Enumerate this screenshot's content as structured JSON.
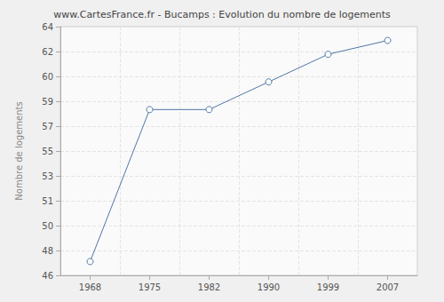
{
  "chart_data": {
    "type": "line",
    "title": "www.CartesFrance.fr - Bucamps : Evolution du nombre de logements",
    "ylabel": "Nombre de logements",
    "categories": [
      "1968",
      "1975",
      "1982",
      "1990",
      "1999",
      "2007"
    ],
    "values": [
      47,
      58,
      58,
      60,
      62,
      63
    ],
    "color": "#4f76a6",
    "marker": "circle",
    "ylim": [
      46,
      64
    ],
    "yticks": [
      46,
      {
        "value": 47.8,
        "label": "48"
      },
      {
        "value": 49.6,
        "label": "50"
      },
      {
        "value": 51.4,
        "label": "51"
      },
      {
        "value": 53.2,
        "label": "53"
      },
      55,
      {
        "value": 56.8,
        "label": "57"
      },
      {
        "value": 58.6,
        "label": "59"
      },
      {
        "value": 60.4,
        "label": "60"
      },
      {
        "value": 62.2,
        "label": "62"
      },
      64
    ],
    "grid": true
  }
}
